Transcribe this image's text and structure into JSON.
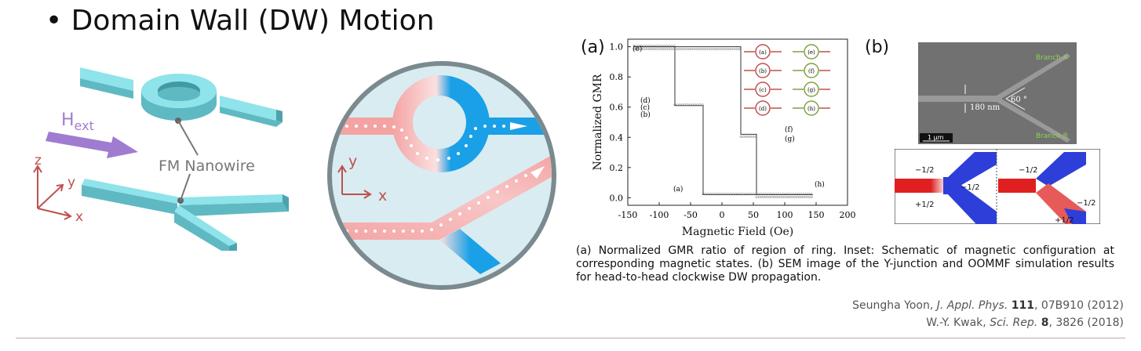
{
  "slide": {
    "title": "• Domain Wall (DW) Motion",
    "left_figure": {
      "field_label_main": "H",
      "field_label_sub": "ext",
      "nanowire_label": "FM Nanowire",
      "axis_z": "z",
      "axis_y": "y",
      "axis_x": "x"
    },
    "circle_figure": {
      "axis_y": "y",
      "axis_x": "x"
    },
    "panel_a": {
      "label": "(a)",
      "ylabel": "Normalized GMR",
      "xlabel": "Magnetic Field (Oe)",
      "curve_labels": [
        "(e)",
        "(d)",
        "(c)",
        "(b)",
        "(f)",
        "(g)",
        "(a)",
        "(h)"
      ],
      "inset_labels": [
        "(a)",
        "(b)",
        "(c)",
        "(d)",
        "(e)",
        "(f)",
        "(g)",
        "(h)"
      ]
    },
    "panel_b": {
      "label": "(b)",
      "branch_a": "Branch A",
      "branch_b": "Branch B",
      "width_label": "180 nm",
      "angle_label": "60 °",
      "scale_label": "1 μm",
      "sim_labels_left": [
        "−1/2",
        "−1/2",
        "+1/2"
      ],
      "sim_labels_right": [
        "−1/2",
        "−1/2",
        "+1/2"
      ]
    },
    "caption": "(a) Normalized GMR ratio of region of ring. Inset: Schematic of magnetic configuration at corresponding magnetic states. (b) SEM image of the Y-junction and OOMMF simulation results for head-to-head clockwise DW propagation.",
    "references": [
      {
        "author": "Seungha Yoon, ",
        "journal": "J. Appl. Phys.",
        "volume": "111",
        "rest": ", 07B910 (2012)"
      },
      {
        "author": "W.-Y. Kwak, ",
        "journal": "Sci. Rep.",
        "volume": "8",
        "rest": ", 3826 (2018)"
      }
    ],
    "colors": {
      "wire_top": "#8fe3ea",
      "wire_side": "#5fb9c2",
      "arrow": "#a07cd0",
      "axis": "#c0504d",
      "dw_red": "#f4a3a3",
      "dw_blue": "#1aa0e6"
    }
  },
  "chart_data": {
    "type": "line",
    "title": "",
    "xlabel": "Magnetic Field (Oe)",
    "ylabel": "Normalized GMR",
    "xlim": [
      -150,
      200
    ],
    "ylim": [
      -0.05,
      1.05
    ],
    "xticks": [
      -150,
      -100,
      -50,
      0,
      50,
      100,
      150,
      200
    ],
    "yticks": [
      0.0,
      0.2,
      0.4,
      0.6,
      0.8,
      1.0
    ],
    "series": [
      {
        "name": "",
        "x": [
          -140,
          -75,
          -75,
          -30,
          -30,
          145
        ],
        "y": [
          1.0,
          1.0,
          0.61,
          0.61,
          0.02,
          0.02
        ]
      },
      {
        "name": "",
        "x": [
          145,
          55,
          55,
          30,
          30,
          -140
        ],
        "y": [
          0.02,
          0.02,
          0.42,
          0.42,
          1.0,
          1.0
        ]
      }
    ]
  }
}
